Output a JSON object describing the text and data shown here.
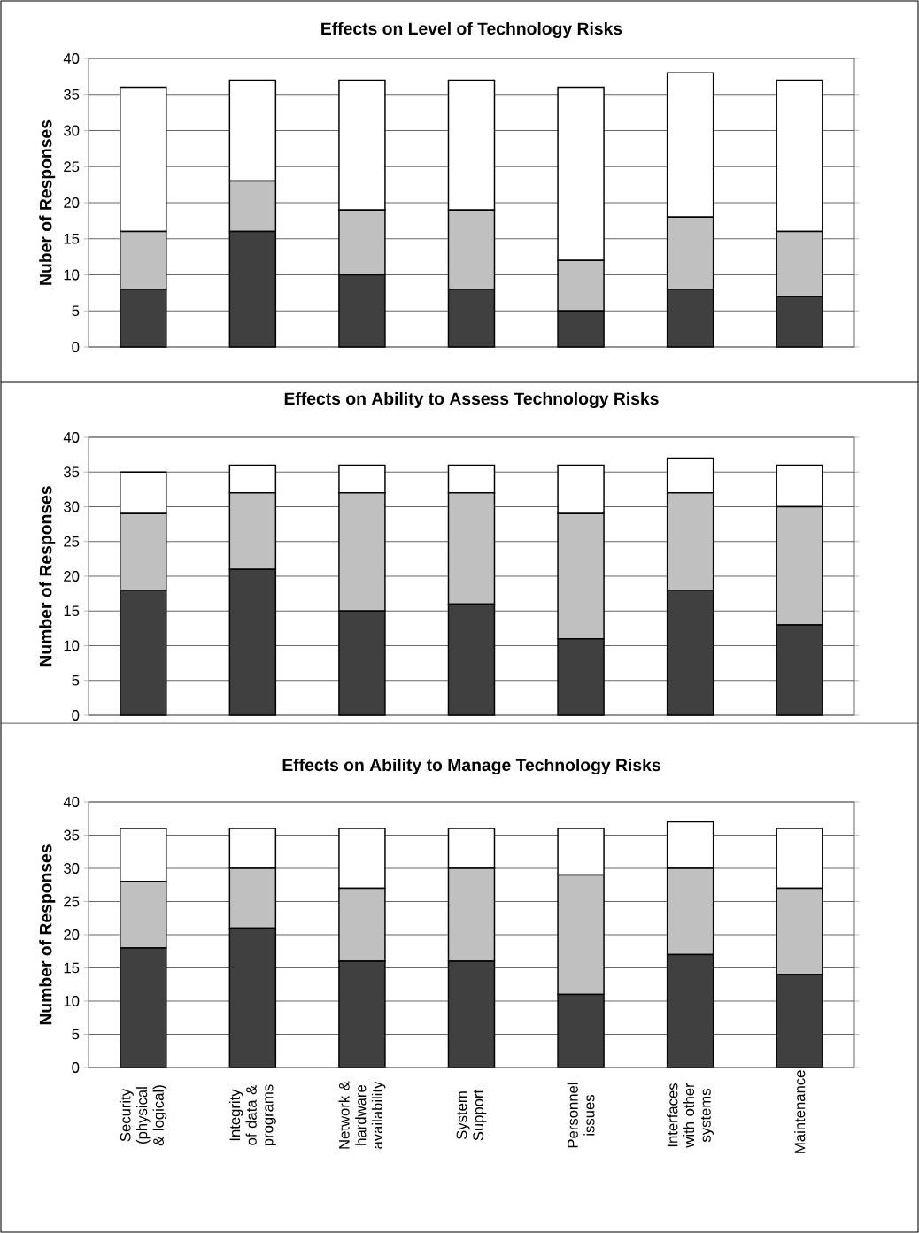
{
  "chart_data": [
    {
      "type": "bar",
      "title": "Effects on Level of Technology Risks",
      "ylabel": "Nuber of Responses",
      "stacked": true,
      "grid": "y",
      "tick_labels": "y",
      "categories": [
        null,
        null,
        null,
        null,
        null,
        null,
        null
      ],
      "series": [
        {
          "color": "#404040",
          "values": [
            8,
            16,
            10,
            8,
            5,
            8,
            7
          ]
        },
        {
          "color": "#c0c0c0",
          "values": [
            8,
            7,
            9,
            11,
            7,
            10,
            9
          ]
        },
        {
          "color": "#ffffff",
          "values": [
            20,
            14,
            18,
            18,
            24,
            20,
            21
          ]
        }
      ],
      "ylim": [
        0,
        40
      ],
      "yticks": [
        0,
        5,
        10,
        15,
        20,
        25,
        30,
        35,
        40
      ]
    },
    {
      "type": "bar",
      "title": "Effects on Ability to Assess Technology Risks",
      "ylabel": "Number of Responses",
      "stacked": true,
      "grid": "y",
      "tick_labels": "y",
      "categories": [
        null,
        null,
        null,
        null,
        null,
        null,
        null
      ],
      "series": [
        {
          "color": "#404040",
          "values": [
            18,
            21,
            15,
            16,
            11,
            18,
            13
          ]
        },
        {
          "color": "#c0c0c0",
          "values": [
            11,
            11,
            17,
            16,
            18,
            14,
            17
          ]
        },
        {
          "color": "#ffffff",
          "values": [
            6,
            4,
            4,
            4,
            7,
            5,
            6
          ]
        }
      ],
      "ylim": [
        0,
        40
      ],
      "yticks": [
        0,
        5,
        10,
        15,
        20,
        25,
        30,
        35,
        40
      ]
    },
    {
      "type": "bar",
      "title": "Effects on  Ability to Manage Technology Risks",
      "ylabel": "Number of Responses",
      "stacked": true,
      "grid": "y",
      "categories": [
        "Security (physical & logical)",
        "Integrity of data & programs",
        "Network & hardware availability",
        "System Support",
        "Personnel issues",
        "Interfaces with other systems",
        "Maintenance"
      ],
      "series": [
        {
          "color": "#404040",
          "values": [
            18,
            21,
            16,
            16,
            11,
            17,
            14
          ]
        },
        {
          "color": "#c0c0c0",
          "values": [
            10,
            9,
            11,
            14,
            18,
            13,
            13
          ]
        },
        {
          "color": "#ffffff",
          "values": [
            8,
            6,
            9,
            6,
            7,
            7,
            9
          ]
        }
      ],
      "ylim": [
        0,
        40
      ],
      "yticks": [
        0,
        5,
        10,
        15,
        20,
        25,
        30,
        35,
        40
      ]
    }
  ]
}
